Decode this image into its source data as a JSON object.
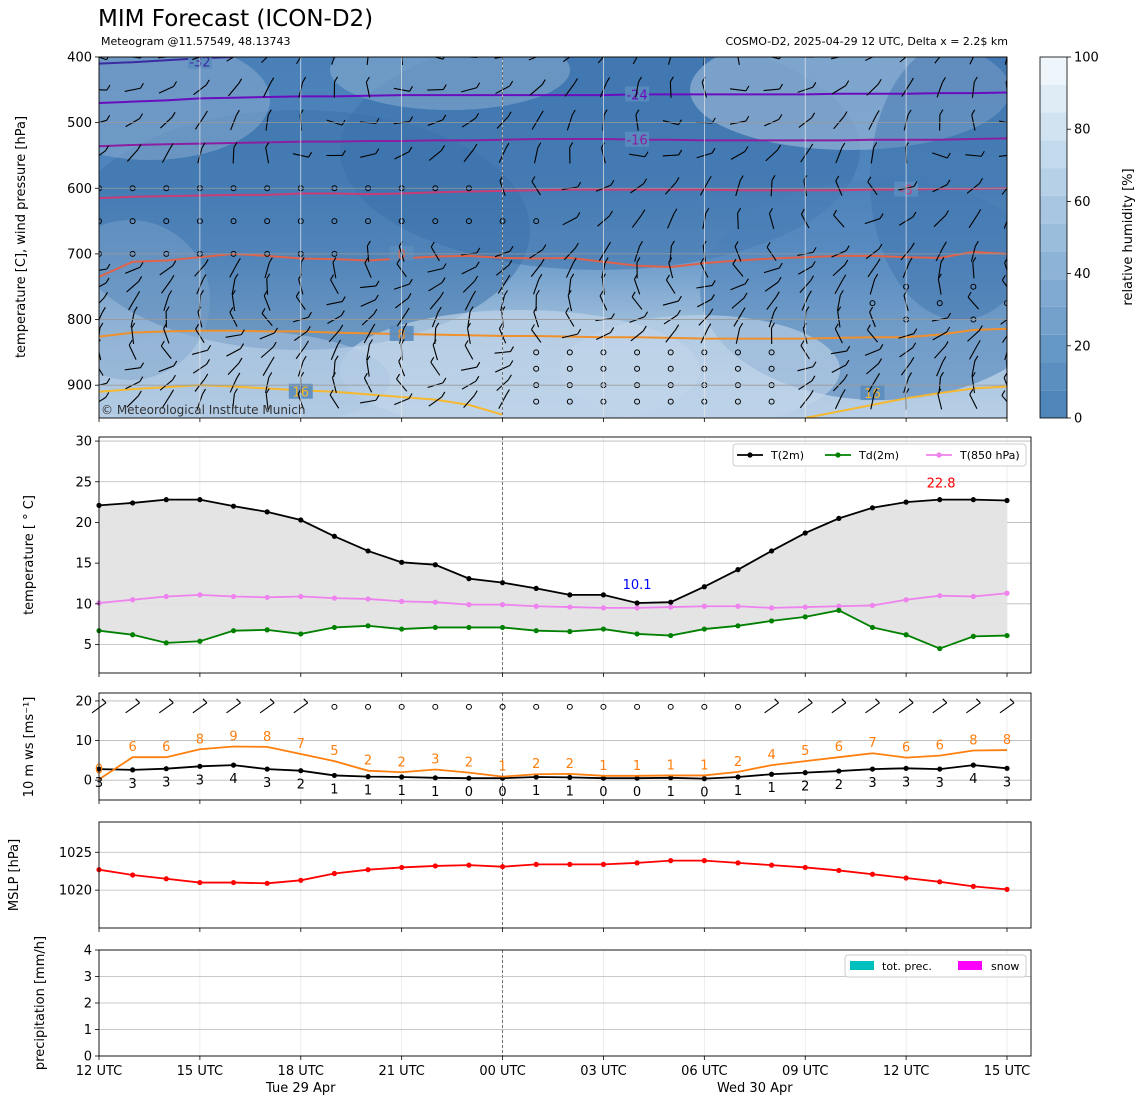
{
  "header": {
    "title": "MIM Forecast (ICON-D2)",
    "subtitle_left": "Meteogram @11.57549, 48.13743",
    "subtitle_right": "COSMO-D2, 2025-04-29 12 UTC, Delta x = 2.2$ km",
    "copyright": "© Meteorological Institute Munich"
  },
  "x_axis": {
    "ticks": [
      "12 UTC",
      "15 UTC",
      "18 UTC",
      "21 UTC",
      "00 UTC",
      "03 UTC",
      "06 UTC",
      "09 UTC",
      "12 UTC",
      "15 UTC"
    ],
    "day_labels": [
      "Tue 29 Apr",
      "Wed 30 Apr"
    ]
  },
  "colors": {
    "t2m": "#000000",
    "td2m": "#008000",
    "t850": "#ee82ee",
    "ws_orange": "#ff7f0e",
    "mslp": "#ff0000",
    "prec": "#00bfbf",
    "snow": "#ff00ff",
    "max_label": "#ff0000",
    "min_label": "#0000ff",
    "fill": "#e4e4e4"
  },
  "chart_data": [
    {
      "type": "heatmap",
      "ylabel": "temperature [C], wind pressure [hPa]",
      "yticks": [
        400,
        500,
        600,
        700,
        800,
        900
      ],
      "ylim": [
        950,
        400
      ],
      "colorbar": {
        "label": "relative humidity [%]",
        "ticks": [
          0,
          20,
          40,
          60,
          80,
          100
        ]
      },
      "isotherm_labels": [
        "-32",
        "-24",
        "-16",
        "-8",
        "0",
        "8",
        "16"
      ],
      "isotherms": [
        {
          "label": "-32",
          "color": "#3a2ca0",
          "label_x": 3,
          "pressure": [
            410,
            408,
            405,
            402,
            400
          ]
        },
        {
          "label": "-24",
          "color": "#6a0dbf",
          "label_x": 16,
          "pressure": [
            470,
            468,
            466,
            463,
            462,
            461,
            460,
            460,
            459,
            458,
            458,
            458,
            458,
            458,
            458,
            458,
            457,
            457,
            457,
            457,
            457,
            457,
            456,
            456,
            456,
            455,
            455,
            454
          ]
        },
        {
          "label": "-16",
          "color": "#8b1fa0",
          "label_x": 16,
          "pressure": [
            536,
            534,
            533,
            532,
            531,
            530,
            529,
            529,
            528,
            528,
            527,
            527,
            526,
            525,
            525,
            525,
            526,
            526,
            527,
            527,
            527,
            527,
            527,
            526,
            526,
            526,
            525,
            524
          ]
        },
        {
          "label": "-8",
          "color": "#c83c78",
          "label_x": 24,
          "pressure": [
            615,
            613,
            612,
            611,
            610,
            610,
            608,
            608,
            609,
            608,
            606,
            605,
            604,
            603,
            602,
            602,
            602,
            602,
            602,
            603,
            603,
            603,
            603,
            602,
            602,
            601,
            601,
            600
          ]
        },
        {
          "label": "0",
          "color": "#e0624a",
          "label_x": 0,
          "pressure": [
            735,
            712,
            710,
            705,
            700,
            703,
            707,
            708,
            710,
            707,
            704,
            703,
            706,
            707,
            706,
            712,
            718,
            720,
            714,
            710,
            707,
            705,
            703,
            703,
            705,
            706,
            697,
            700
          ]
        },
        {
          "label": "8",
          "color": "#f0902c",
          "label_x": 9,
          "pressure": [
            826,
            820,
            818,
            817,
            817,
            818,
            818,
            820,
            821,
            822,
            823,
            824,
            825,
            825,
            826,
            827,
            827,
            828,
            829,
            829,
            829,
            829,
            828,
            827,
            827,
            823,
            816,
            814
          ]
        },
        {
          "label": "16",
          "color": "#f5b82e",
          "label_x": 6,
          "pressure": [
            910,
            906,
            903,
            900,
            902,
            905,
            908,
            910,
            914,
            918,
            922,
            930,
            945
          ]
        },
        {
          "label": "16",
          "color": "#f5b82e",
          "label_x": 23,
          "pressure": [
            950,
            940,
            930,
            920,
            912,
            905,
            902,
            900
          ]
        }
      ]
    },
    {
      "type": "line",
      "ylabel": "temperature [$^\\circ$C]",
      "ylim": [
        1.5,
        30.5
      ],
      "yticks": [
        5,
        10,
        15,
        20,
        25,
        30
      ],
      "annotations": {
        "max": "22.8",
        "min": "10.1"
      },
      "series": [
        {
          "name": "T(2m)",
          "values": [
            22.1,
            22.4,
            22.8,
            22.8,
            22.0,
            21.3,
            20.3,
            18.3,
            16.5,
            15.1,
            14.8,
            13.1,
            12.6,
            11.9,
            11.1,
            11.1,
            10.1,
            10.2,
            12.1,
            14.2,
            16.5,
            18.7,
            20.5,
            21.8,
            22.5,
            22.8,
            22.8,
            22.7
          ]
        },
        {
          "name": "Td(2m)",
          "values": [
            6.7,
            6.2,
            5.2,
            5.4,
            6.7,
            6.8,
            6.3,
            7.1,
            7.3,
            6.9,
            7.1,
            7.1,
            7.1,
            6.7,
            6.6,
            6.9,
            6.3,
            6.1,
            6.9,
            7.3,
            7.9,
            8.4,
            9.2,
            7.1,
            6.2,
            4.5,
            6.0,
            6.1
          ]
        },
        {
          "name": "T(850 hPa)",
          "values": [
            10.1,
            10.5,
            10.9,
            11.1,
            10.9,
            10.8,
            10.9,
            10.7,
            10.6,
            10.3,
            10.2,
            9.9,
            9.9,
            9.7,
            9.6,
            9.5,
            9.5,
            9.6,
            9.7,
            9.7,
            9.5,
            9.6,
            9.7,
            9.8,
            10.5,
            11.0,
            10.9,
            11.3
          ]
        }
      ]
    },
    {
      "type": "line",
      "ylabel": "10 m ws [ms$^{-1}$]",
      "ylim": [
        -5,
        22
      ],
      "yticks": [
        0,
        10,
        20
      ],
      "series": [
        {
          "values": [
            2.8,
            2.6,
            2.9,
            3.5,
            3.8,
            2.8,
            2.4,
            1.2,
            0.9,
            0.8,
            0.6,
            0.5,
            0.5,
            0.8,
            0.7,
            0.5,
            0.5,
            0.6,
            0.4,
            0.8,
            1.5,
            1.9,
            2.3,
            2.8,
            3.0,
            2.8,
            3.8,
            3.0
          ]
        },
        {
          "values": [
            0.2,
            5.8,
            5.8,
            7.8,
            8.5,
            8.4,
            6.6,
            4.8,
            2.4,
            2.0,
            2.7,
            1.9,
            0.9,
            1.5,
            1.6,
            1.1,
            1.1,
            1.2,
            1.2,
            2.1,
            3.8,
            4.8,
            5.8,
            6.8,
            5.7,
            6.2,
            7.5,
            7.6
          ]
        }
      ],
      "labels_black": [
        "3",
        "3",
        "3",
        "3",
        "4",
        "3",
        "2",
        "1",
        "1",
        "1",
        "1",
        "0",
        "0",
        "1",
        "1",
        "0",
        "0",
        "1",
        "0",
        "1",
        "1",
        "2",
        "2",
        "3",
        "3",
        "3",
        "4",
        "3"
      ],
      "labels_orange": [
        "0",
        "6",
        "6",
        "8",
        "9",
        "8",
        "7",
        "5",
        "2",
        "2",
        "3",
        "2",
        "1",
        "2",
        "2",
        "1",
        "1",
        "1",
        "1",
        "2",
        "4",
        "5",
        "6",
        "7",
        "6",
        "6",
        "8",
        "8"
      ]
    },
    {
      "type": "line",
      "ylabel": "MSLP [hPa]",
      "ylim": [
        1015,
        1029
      ],
      "yticks": [
        1020,
        1025
      ],
      "series": [
        {
          "values": [
            1022.7,
            1022.0,
            1021.5,
            1021.0,
            1021.0,
            1020.9,
            1021.3,
            1022.2,
            1022.7,
            1023.0,
            1023.2,
            1023.3,
            1023.1,
            1023.4,
            1023.4,
            1023.4,
            1023.6,
            1023.9,
            1023.9,
            1023.6,
            1023.3,
            1023.0,
            1022.6,
            1022.1,
            1021.6,
            1021.1,
            1020.5,
            1020.1
          ]
        }
      ]
    },
    {
      "type": "bar",
      "ylabel": "precipitation [mm/h]",
      "ylim": [
        0,
        4
      ],
      "yticks": [
        0,
        1,
        2,
        3,
        4
      ],
      "series": [
        {
          "name": "tot. prec.",
          "values": [
            0,
            0,
            0,
            0,
            0,
            0,
            0,
            0,
            0,
            0,
            0,
            0,
            0,
            0,
            0,
            0,
            0,
            0,
            0,
            0,
            0,
            0,
            0,
            0,
            0,
            0,
            0,
            0
          ]
        },
        {
          "name": "snow",
          "values": [
            0,
            0,
            0,
            0,
            0,
            0,
            0,
            0,
            0,
            0,
            0,
            0,
            0,
            0,
            0,
            0,
            0,
            0,
            0,
            0,
            0,
            0,
            0,
            0,
            0,
            0,
            0,
            0
          ]
        }
      ]
    }
  ]
}
